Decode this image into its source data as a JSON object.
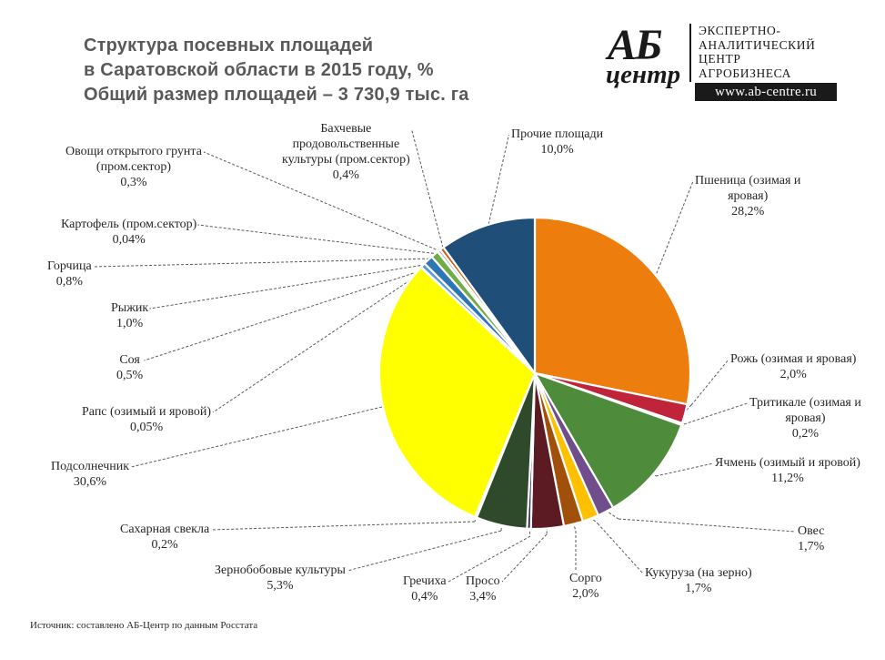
{
  "header": {
    "title_lines": [
      "Структура посевных площадей",
      "в Саратовской области в 2015 году, %",
      "Общий размер площадей – 3 730,9 тыс. га"
    ]
  },
  "logo": {
    "mark_top": "АБ",
    "mark_bottom": "центр",
    "text_lines": [
      "ЭКСПЕРТНО-",
      "АНАЛИТИЧЕСКИЙ",
      "ЦЕНТР",
      "АГРОБИЗНЕСА"
    ],
    "url": "www.ab-centre.ru"
  },
  "source": "Источник: составлено АБ-Центр по данным Росстата",
  "chart_data": {
    "type": "pie",
    "title": "Структура посевных площадей в Саратовской области в 2015 году, %",
    "start_angle_deg": 0,
    "direction": "clockwise",
    "slices": [
      {
        "label_lines": [
          "Пшеница (озимая и",
          "яровая)"
        ],
        "value_text": "28,2%",
        "value": 28.2,
        "color": "#ED7D0D"
      },
      {
        "label_lines": [
          "Рожь (озимая и яровая)"
        ],
        "value_text": "2,0%",
        "value": 2.0,
        "color": "#C0243A"
      },
      {
        "label_lines": [
          "Тритикале (озимая и",
          "яровая)"
        ],
        "value_text": "0,2%",
        "value": 0.2,
        "color": "#A6A6A6"
      },
      {
        "label_lines": [
          "Ячмень (озимый и яровой)"
        ],
        "value_text": "11,2%",
        "value": 11.2,
        "color": "#4E8B3A"
      },
      {
        "label_lines": [
          "Овес"
        ],
        "value_text": "1,7%",
        "value": 1.7,
        "color": "#6F4E8B"
      },
      {
        "label_lines": [
          "Кукуруза (на зерно)"
        ],
        "value_text": "1,7%",
        "value": 1.7,
        "color": "#FFC000"
      },
      {
        "label_lines": [
          "Сорго"
        ],
        "value_text": "2,0%",
        "value": 2.0,
        "color": "#A0500A"
      },
      {
        "label_lines": [
          "Просо"
        ],
        "value_text": "3,4%",
        "value": 3.4,
        "color": "#5C1A22"
      },
      {
        "label_lines": [
          "Гречиха"
        ],
        "value_text": "0,4%",
        "value": 0.4,
        "color": "#3A2A5A"
      },
      {
        "label_lines": [
          "Зернобобовые культуры"
        ],
        "value_text": "5,3%",
        "value": 5.3,
        "color": "#2F4A2A"
      },
      {
        "label_lines": [
          "Сахарная свекла"
        ],
        "value_text": "0,2%",
        "value": 0.2,
        "color": "#C8C8C8"
      },
      {
        "label_lines": [
          "Подсолнечник"
        ],
        "value_text": "30,6%",
        "value": 30.6,
        "color": "#FFFF00"
      },
      {
        "label_lines": [
          "Рапс (озимый и яровой)"
        ],
        "value_text": "0,05%",
        "value": 0.05,
        "color": "#9DC3E6"
      },
      {
        "label_lines": [
          "Соя"
        ],
        "value_text": "0,5%",
        "value": 0.5,
        "color": "#5B9BD5"
      },
      {
        "label_lines": [
          "Рыжик"
        ],
        "value_text": "1,0%",
        "value": 1.0,
        "color": "#2E75B6"
      },
      {
        "label_lines": [
          "Горчица"
        ],
        "value_text": "0,8%",
        "value": 0.8,
        "color": "#70AD47"
      },
      {
        "label_lines": [
          "Картофель (пром.сектор)"
        ],
        "value_text": "0,04%",
        "value": 0.04,
        "color": "#ED7D31"
      },
      {
        "label_lines": [
          "Овощи открытого грунта",
          "(пром.сектор)"
        ],
        "value_text": "0,3%",
        "value": 0.3,
        "color": "#A5A5A5"
      },
      {
        "label_lines": [
          "Бахчевые",
          "продовольственные",
          "культуры (пром.сектор)"
        ],
        "value_text": "0,4%",
        "value": 0.4,
        "color": "#C55A11"
      },
      {
        "label_lines": [
          "Прочие площади"
        ],
        "value_text": "10,0%",
        "value": 10.0,
        "color": "#1F4E79"
      }
    ]
  }
}
